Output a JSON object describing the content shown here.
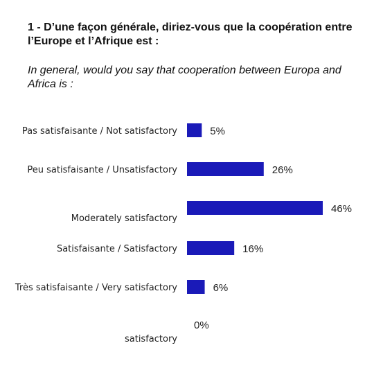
{
  "header": {
    "title_fr": "1 - D’une façon générale, diriez-vous que la coopération entre l’Europe et l’Afrique est  :",
    "title_en": "In general, would you say that cooperation between Europa and Africa is :"
  },
  "chart_data": {
    "type": "bar",
    "orientation": "horizontal",
    "title": "",
    "xlabel": "",
    "ylabel": "",
    "xlim": [
      0,
      46
    ],
    "grid": false,
    "legend": "none",
    "bar_color": "#1a1ab8",
    "categories": [
      "Pas satisfaisante / Not satisfactory",
      "Peu satisfaisante / Unsatisfactory",
      "Moderately satisfactory",
      "Satisfaisante / Satisfactory",
      "Très satisfaisante / Very satisfactory",
      "satisfactory"
    ],
    "values": [
      5,
      26,
      46,
      16,
      6,
      0
    ],
    "value_labels": [
      "5%",
      "26%",
      "46%",
      "16%",
      "6%",
      "0%"
    ]
  }
}
